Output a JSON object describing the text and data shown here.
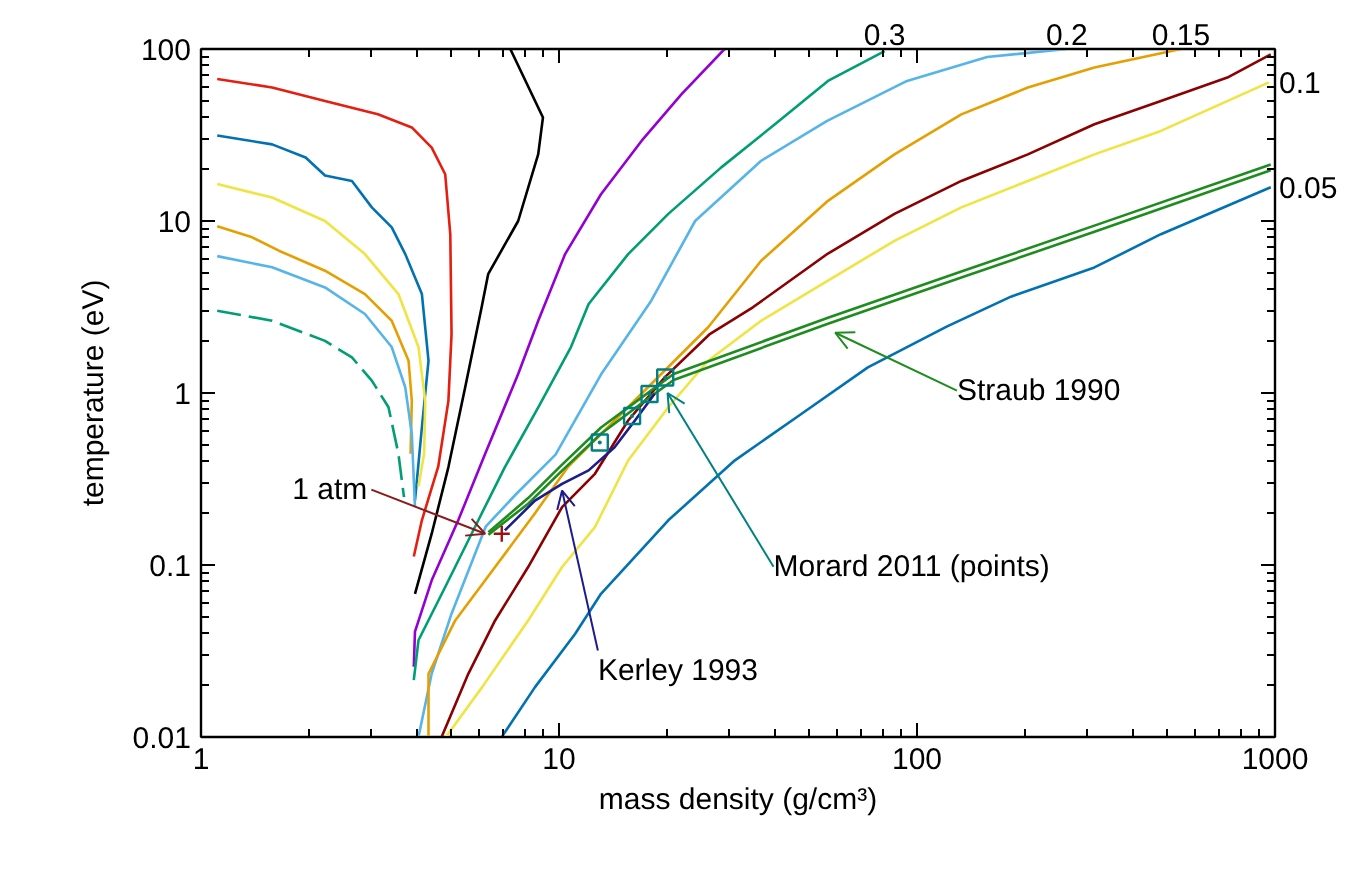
{
  "chart_data": {
    "type": "line",
    "log": "xy",
    "xlabel": "mass density (g/cm³)",
    "ylabel": "temperature (eV)",
    "xlim": [
      1,
      1000
    ],
    "ylim": [
      0.01,
      100
    ],
    "xticks": [
      1,
      10,
      100,
      1000
    ],
    "yticks": [
      0.01,
      0.1,
      1,
      10,
      100
    ],
    "series": [
      {
        "color": "#e51e10",
        "x": [
          1.11,
          1.58,
          2.22,
          3.12,
          3.88,
          4.41,
          4.81,
          4.97,
          5.01,
          4.91,
          4.6,
          4.14,
          3.93
        ],
        "values": [
          67,
          59.7,
          49.9,
          41.7,
          35,
          26.7,
          18.7,
          8.37,
          2.2,
          0.9,
          0.374,
          0.182,
          0.112
        ]
      },
      {
        "color": "#0072b2",
        "x": [
          1.11,
          1.58,
          1.96,
          2.22,
          2.64,
          3.0,
          3.41,
          3.72,
          4.14,
          4.32,
          4.14,
          3.96
        ],
        "values": [
          31.4,
          27.9,
          23.4,
          18.4,
          17.1,
          12,
          9.18,
          6.42,
          3.76,
          1.54,
          0.632,
          0.237
        ]
      },
      {
        "color": "#f0e442",
        "x": [
          1.11,
          1.58,
          2.22,
          2.87,
          3.56,
          4.05,
          4.23,
          4.2,
          4.05
        ],
        "values": [
          16.4,
          13.7,
          10,
          6.42,
          3.76,
          1.85,
          0.9,
          0.443,
          0.286
        ]
      },
      {
        "color": "#e69f00",
        "x": [
          1.11,
          1.39,
          1.65,
          2.22,
          2.87,
          3.41,
          3.8,
          3.88,
          3.85
        ],
        "values": [
          9.33,
          8.04,
          6.72,
          5.14,
          3.76,
          2.63,
          1.54,
          0.9,
          0.443
        ]
      },
      {
        "color": "#56b4e9",
        "x": [
          1.11,
          1.58,
          2.22,
          2.87,
          3.41,
          3.72,
          3.88,
          3.96
        ],
        "values": [
          6.25,
          5.38,
          4.11,
          2.88,
          1.85,
          1.08,
          0.578,
          0.217
        ]
      },
      {
        "color": "#009e73",
        "line_style": "dashed",
        "x": [
          1.11,
          1.58,
          2.22,
          2.64,
          3.0,
          3.34,
          3.56,
          3.69
        ],
        "values": [
          3.01,
          2.63,
          2.01,
          1.61,
          1.18,
          0.826,
          0.443,
          0.248
        ]
      },
      {
        "color": "#000000",
        "x": [
          7.31,
          9.02,
          8.75,
          7.69,
          6.34,
          6.08,
          5.47,
          4.91,
          4.41,
          3.96
        ],
        "values": [
          100,
          40,
          24.5,
          10,
          4.91,
          3.15,
          1.08,
          0.371,
          0.152,
          0.068
        ]
      },
      {
        "color": "#9400d3",
        "x": [
          3.93,
          3.96,
          4.41,
          5.23,
          6.22,
          7.69,
          8.75,
          10.4,
          13.1,
          17,
          22,
          29
        ],
        "values": [
          0.0256,
          0.041,
          0.0815,
          0.182,
          0.443,
          1.29,
          2.63,
          6.42,
          14.3,
          29.2,
          54.6,
          100
        ]
      },
      {
        "name": "0.3",
        "color": "#009e73",
        "x": [
          3.93,
          4.05,
          4.81,
          5.7,
          7.06,
          8.75,
          10.8,
          12.1,
          15.6,
          20.2,
          28.4,
          40.1,
          56.4,
          81.2
        ],
        "values": [
          0.0214,
          0.0365,
          0.0745,
          0.152,
          0.371,
          0.826,
          1.85,
          3.29,
          6.42,
          11,
          20.5,
          36.5,
          65.2,
          97.3
        ]
      },
      {
        "name": "0.2",
        "color": "#56b4e9",
        "x": [
          4.05,
          4.41,
          5.01,
          6.24,
          7.57,
          9.78,
          13.1,
          18.1,
          24,
          36.7,
          56.1,
          93.8,
          157,
          262
        ],
        "values": [
          0.01,
          0.0234,
          0.0521,
          0.167,
          0.257,
          0.438,
          1.28,
          3.44,
          10,
          22.4,
          38.2,
          65.2,
          89.9,
          100
        ]
      },
      {
        "name": "0.15",
        "color": "#e69f00",
        "x": [
          4.32,
          4.32,
          5.13,
          6.63,
          8.57,
          10.6,
          14.3,
          19.3,
          26.1,
          36.7,
          56.4,
          86.5,
          133,
          204,
          313,
          546
        ],
        "values": [
          0.01,
          0.0233,
          0.0476,
          0.0973,
          0.2,
          0.372,
          0.692,
          1.29,
          2.41,
          5.87,
          13.1,
          24.4,
          41.7,
          59.7,
          78,
          100
        ]
      },
      {
        "color": "#8b0000",
        "x": [
          4.7,
          5.58,
          6.63,
          8.2,
          10.2,
          12.6,
          15.6,
          19.8,
          26.3,
          34.8,
          56.4,
          86.5,
          133,
          204,
          313,
          480,
          736,
          973
        ],
        "values": [
          0.01,
          0.0233,
          0.0476,
          0.0973,
          0.217,
          0.339,
          0.692,
          1.24,
          2.19,
          3.15,
          6.47,
          11,
          17.1,
          24.4,
          36.5,
          49.9,
          68.2,
          93.1
        ]
      },
      {
        "name": "0.1",
        "color": "#f0e442",
        "x": [
          4.83,
          6.1,
          8.2,
          10.2,
          12.6,
          15.6,
          20.2,
          26.1,
          36.7,
          56.4,
          86.5,
          133,
          204,
          313,
          480,
          962
        ],
        "values": [
          0.01,
          0.0195,
          0.0476,
          0.0973,
          0.166,
          0.405,
          0.826,
          1.54,
          2.63,
          4.5,
          7.67,
          12,
          17.1,
          24.4,
          33.4,
          64
        ]
      },
      {
        "name": "0.05",
        "color": "#0072b2",
        "x": [
          6.92,
          8.57,
          11.1,
          13.1,
          20.2,
          31,
          47.5,
          72.9,
          121,
          183,
          313,
          480,
          973
        ],
        "values": [
          0.01,
          0.0195,
          0.0398,
          0.068,
          0.182,
          0.406,
          0.755,
          1.41,
          2.43,
          3.63,
          5.37,
          8.38,
          15.7
        ]
      },
      {
        "color": "#1e8c1e",
        "x": [
          6.35,
          8.2,
          10.2,
          13.1,
          17,
          20.9,
          56.4,
          133,
          313,
          973
        ],
        "values": [
          0.155,
          0.245,
          0.383,
          0.63,
          0.94,
          1.29,
          2.74,
          5.08,
          9.4,
          21.3
        ]
      },
      {
        "color": "#1e8c1e",
        "x": [
          6.35,
          8.2,
          10.2,
          13.1,
          17,
          20.9,
          56.4,
          133,
          313,
          973
        ],
        "values": [
          0.15,
          0.227,
          0.354,
          0.58,
          0.87,
          1.19,
          2.53,
          4.69,
          8.67,
          19.7
        ]
      },
      {
        "color": "#1c1c8c",
        "x": [
          7.06,
          8.57,
          10.2,
          12.1,
          14.3,
          16.3,
          18.5
        ],
        "values": [
          0.159,
          0.237,
          0.296,
          0.355,
          0.484,
          0.692,
          0.989
        ]
      },
      {
        "type": "scatter",
        "marker": "square",
        "color": "#008080",
        "x": [
          13,
          16,
          17.9,
          19.8
        ],
        "values": [
          0.515,
          0.735,
          0.986,
          1.23
        ]
      },
      {
        "type": "scatter",
        "marker": "cross",
        "color": "#a01010",
        "x": [
          6.92
        ],
        "values": [
          0.152
        ]
      }
    ],
    "annotations": [
      {
        "text": "1 atm",
        "x": 6.22,
        "y": 0.152
      },
      {
        "text": "Kerley 1993",
        "x": 10.2,
        "y": 0.271
      },
      {
        "text": "Morard 2011 (points)",
        "x": 20.1,
        "y": 1.0
      },
      {
        "text": "Straub 1990",
        "x": 59.1,
        "y": 2.24
      }
    ]
  }
}
